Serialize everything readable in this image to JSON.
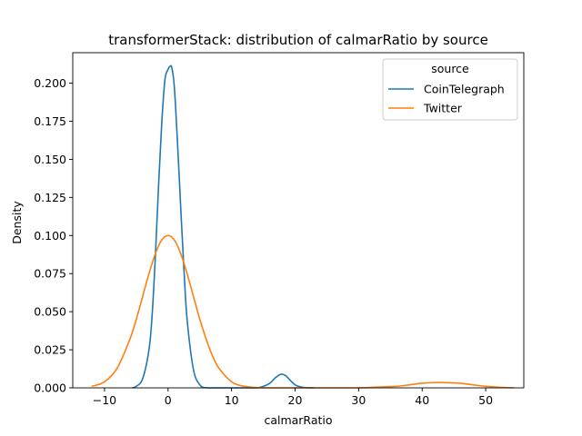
{
  "chart_data": {
    "type": "line",
    "title": "transformerStack: distribution of calmarRatio by source",
    "xlabel": "calmarRatio",
    "ylabel": "Density",
    "xlim": [
      -15,
      56
    ],
    "ylim": [
      0,
      0.22
    ],
    "xticks": [
      -10,
      0,
      10,
      20,
      30,
      40,
      50
    ],
    "xtick_labels": [
      "−10",
      "0",
      "10",
      "20",
      "30",
      "40",
      "50"
    ],
    "yticks": [
      0,
      0.025,
      0.05,
      0.075,
      0.1,
      0.125,
      0.15,
      0.175,
      0.2
    ],
    "ytick_labels": [
      "0.000",
      "0.025",
      "0.050",
      "0.075",
      "0.100",
      "0.125",
      "0.150",
      "0.175",
      "0.200"
    ],
    "grid": false,
    "legend": {
      "title": "source",
      "placement": "top-right"
    },
    "series": [
      {
        "name": "CoinTelegraph",
        "color": "#1f77b4",
        "x": [
          -5.6,
          -5,
          -4,
          -3,
          -2.5,
          -2,
          -1.5,
          -1,
          -0.5,
          0,
          0.3,
          0.6,
          1,
          1.5,
          2,
          2.5,
          3,
          4,
          5,
          6,
          7,
          8,
          10,
          12,
          14,
          15,
          16,
          17,
          17.8,
          18.5,
          19,
          20,
          21,
          22,
          23
        ],
        "y": [
          0.0,
          0.001,
          0.006,
          0.025,
          0.048,
          0.086,
          0.132,
          0.173,
          0.202,
          0.209,
          0.211,
          0.21,
          0.197,
          0.16,
          0.118,
          0.078,
          0.045,
          0.012,
          0.002,
          0.0,
          0.0,
          0.0,
          0.0,
          0.0,
          0.0,
          0.001,
          0.003,
          0.007,
          0.009,
          0.008,
          0.006,
          0.002,
          0.0005,
          0.0001,
          0.0
        ]
      },
      {
        "name": "Twitter",
        "color": "#ff7f0e",
        "x": [
          -12,
          -10,
          -8,
          -6,
          -5,
          -4,
          -3,
          -2,
          -1,
          0,
          1,
          2,
          3,
          4,
          5,
          6,
          7,
          8,
          10,
          12,
          15,
          20,
          25,
          30,
          33,
          36,
          38,
          40,
          42,
          43,
          44,
          46,
          48,
          50,
          52,
          54.5
        ],
        "y": [
          0.001,
          0.004,
          0.013,
          0.032,
          0.045,
          0.06,
          0.075,
          0.088,
          0.097,
          0.1,
          0.097,
          0.088,
          0.075,
          0.06,
          0.045,
          0.032,
          0.021,
          0.013,
          0.004,
          0.001,
          0.0,
          0.0,
          0.0,
          0.0,
          0.0005,
          0.001,
          0.002,
          0.003,
          0.0035,
          0.0035,
          0.0034,
          0.003,
          0.002,
          0.001,
          0.0004,
          0.0
        ]
      }
    ]
  }
}
